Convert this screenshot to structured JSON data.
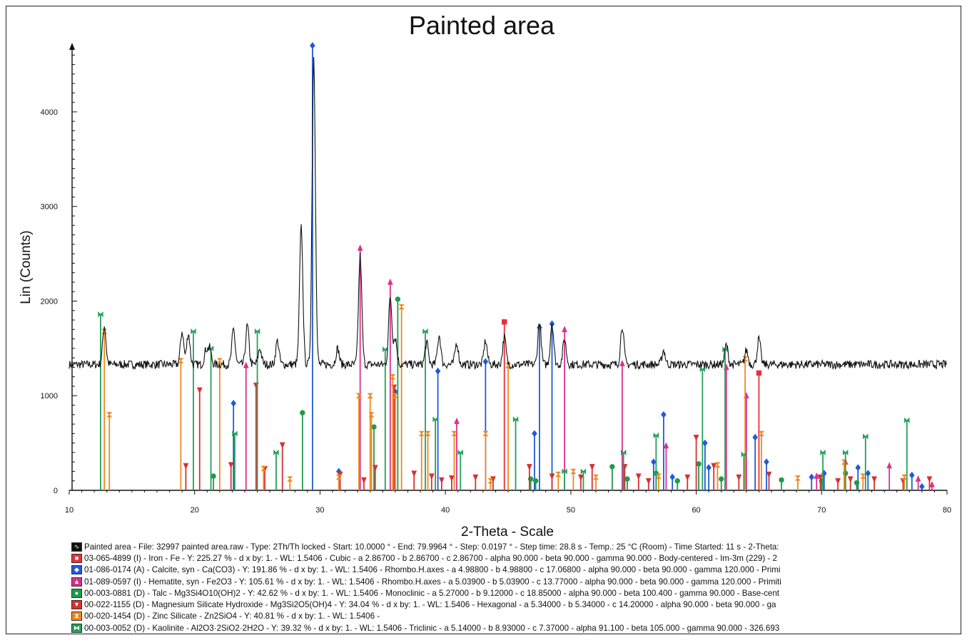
{
  "chart_data": {
    "type": "line",
    "title": "Painted area",
    "xlabel": "2-Theta - Scale",
    "ylabel": "Lin (Counts)",
    "xlim": [
      10,
      80
    ],
    "ylim": [
      0,
      4700
    ],
    "x_ticks": [
      10,
      20,
      30,
      40,
      50,
      60,
      70,
      80
    ],
    "y_ticks": [
      0,
      1000,
      2000,
      3000,
      4000
    ],
    "grid": false,
    "baseline": 1330,
    "series": [
      {
        "name": "Painted area",
        "color": "#111111",
        "peaks": [
          [
            12.8,
            1740
          ],
          [
            19.0,
            1680
          ],
          [
            19.5,
            1660
          ],
          [
            20.9,
            1480
          ],
          [
            21.2,
            1500
          ],
          [
            23.1,
            1700
          ],
          [
            24.2,
            1740
          ],
          [
            25.2,
            1500
          ],
          [
            26.6,
            1580
          ],
          [
            28.5,
            2780
          ],
          [
            29.5,
            4580
          ],
          [
            31.4,
            1500
          ],
          [
            33.2,
            2480
          ],
          [
            35.6,
            2050
          ],
          [
            36.0,
            1610
          ],
          [
            38.5,
            1560
          ],
          [
            39.5,
            1640
          ],
          [
            40.9,
            1560
          ],
          [
            43.2,
            1580
          ],
          [
            44.7,
            1620
          ],
          [
            47.5,
            1780
          ],
          [
            48.5,
            1770
          ],
          [
            49.5,
            1600
          ],
          [
            54.1,
            1740
          ],
          [
            57.4,
            1480
          ],
          [
            62.4,
            1540
          ],
          [
            64.0,
            1480
          ],
          [
            65.0,
            1600
          ]
        ]
      }
    ],
    "reference_phases": [
      {
        "name": "03-065-4899 (I) - Iron - Fe",
        "color": "#e8303c",
        "marker": "square",
        "sticks": [
          [
            44.7,
            1780
          ],
          [
            65.0,
            1240
          ]
        ]
      },
      {
        "name": "01-086-0174 (A) - Calcite, syn - Ca(CO3)",
        "color": "#1e5bd8",
        "marker": "diamond",
        "sticks": [
          [
            23.1,
            920
          ],
          [
            29.4,
            4700
          ],
          [
            31.5,
            200
          ],
          [
            36.0,
            1040
          ],
          [
            39.4,
            1260
          ],
          [
            43.2,
            1360
          ],
          [
            47.1,
            600
          ],
          [
            47.5,
            1720
          ],
          [
            48.5,
            1760
          ],
          [
            56.6,
            300
          ],
          [
            57.4,
            800
          ],
          [
            58.1,
            140
          ],
          [
            60.7,
            500
          ],
          [
            61.0,
            240
          ],
          [
            64.7,
            560
          ],
          [
            65.6,
            300
          ],
          [
            69.2,
            140
          ],
          [
            70.2,
            180
          ],
          [
            72.9,
            240
          ],
          [
            73.7,
            180
          ],
          [
            77.2,
            160
          ],
          [
            78.0,
            40
          ]
        ]
      },
      {
        "name": "01-089-0597 (I) - Hematite, syn - Fe2O3",
        "color": "#d8328c",
        "marker": "triangle-up",
        "sticks": [
          [
            24.1,
            1320
          ],
          [
            33.2,
            2560
          ],
          [
            35.6,
            2200
          ],
          [
            40.9,
            730
          ],
          [
            49.5,
            1700
          ],
          [
            54.1,
            1340
          ],
          [
            57.6,
            470
          ],
          [
            62.4,
            1300
          ],
          [
            64.0,
            1000
          ],
          [
            69.6,
            150
          ],
          [
            71.9,
            300
          ],
          [
            75.4,
            260
          ],
          [
            77.7,
            120
          ],
          [
            78.8,
            60
          ]
        ]
      },
      {
        "name": "00-003-0881 (D) - Talc - Mg3Si4O10(OH)2",
        "color": "#1e9a4a",
        "marker": "circle",
        "sticks": [
          [
            21.5,
            150
          ],
          [
            28.6,
            820
          ],
          [
            34.3,
            670
          ],
          [
            36.2,
            2020
          ],
          [
            46.8,
            120
          ],
          [
            47.2,
            100
          ],
          [
            53.3,
            250
          ],
          [
            54.5,
            120
          ],
          [
            56.8,
            180
          ],
          [
            58.5,
            100
          ],
          [
            60.2,
            280
          ],
          [
            62.0,
            120
          ],
          [
            66.8,
            110
          ],
          [
            70.0,
            100
          ],
          [
            71.9,
            180
          ],
          [
            72.8,
            80
          ]
        ]
      },
      {
        "name": "00-022-1155 (D) - Magnesium Silicate Hydroxide - Mg3Si2O5(OH)4",
        "color": "#d83030",
        "marker": "triangle-down",
        "sticks": [
          [
            19.3,
            260
          ],
          [
            20.4,
            1060
          ],
          [
            22.9,
            270
          ],
          [
            24.9,
            1110
          ],
          [
            25.6,
            230
          ],
          [
            27.0,
            480
          ],
          [
            31.6,
            170
          ],
          [
            33.5,
            110
          ],
          [
            34.4,
            240
          ],
          [
            35.9,
            1090
          ],
          [
            37.5,
            180
          ],
          [
            38.9,
            150
          ],
          [
            39.7,
            110
          ],
          [
            40.5,
            130
          ],
          [
            42.4,
            140
          ],
          [
            43.8,
            120
          ],
          [
            46.7,
            250
          ],
          [
            48.5,
            150
          ],
          [
            50.8,
            140
          ],
          [
            51.7,
            250
          ],
          [
            54.3,
            250
          ],
          [
            55.4,
            150
          ],
          [
            56.2,
            100
          ],
          [
            59.3,
            140
          ],
          [
            60.0,
            560
          ],
          [
            61.4,
            260
          ],
          [
            63.4,
            140
          ],
          [
            65.8,
            170
          ],
          [
            69.9,
            140
          ],
          [
            71.3,
            100
          ],
          [
            72.3,
            120
          ],
          [
            74.2,
            120
          ],
          [
            76.5,
            100
          ],
          [
            78.6,
            120
          ]
        ]
      },
      {
        "name": "00-020-1454 (D) - Zinc Silicate - Zn2SiO4",
        "color": "#f0891c",
        "marker": "hourglass",
        "sticks": [
          [
            12.8,
            1680
          ],
          [
            13.2,
            800
          ],
          [
            18.9,
            1370
          ],
          [
            22.0,
            1370
          ],
          [
            25.5,
            230
          ],
          [
            27.6,
            120
          ],
          [
            31.5,
            140
          ],
          [
            33.1,
            1000
          ],
          [
            34.0,
            1000
          ],
          [
            34.1,
            800
          ],
          [
            35.8,
            1200
          ],
          [
            36.0,
            1000
          ],
          [
            36.5,
            1940
          ],
          [
            38.1,
            600
          ],
          [
            38.6,
            600
          ],
          [
            40.7,
            600
          ],
          [
            43.2,
            600
          ],
          [
            43.6,
            100
          ],
          [
            45.0,
            1320
          ],
          [
            49.0,
            170
          ],
          [
            50.2,
            200
          ],
          [
            52.0,
            140
          ],
          [
            57.0,
            150
          ],
          [
            61.7,
            270
          ],
          [
            63.9,
            1390
          ],
          [
            65.2,
            600
          ],
          [
            68.1,
            130
          ],
          [
            71.8,
            300
          ],
          [
            73.3,
            150
          ],
          [
            76.6,
            140
          ]
        ]
      },
      {
        "name": "00-003-0052 (D) - Kaolinite - Al2O3·2SiO2·2H2O",
        "color": "#22a05a",
        "marker": "bowtie",
        "sticks": [
          [
            12.5,
            1860
          ],
          [
            19.9,
            1680
          ],
          [
            21.3,
            1500
          ],
          [
            23.2,
            600
          ],
          [
            25.0,
            1680
          ],
          [
            26.5,
            400
          ],
          [
            35.2,
            1490
          ],
          [
            38.4,
            1680
          ],
          [
            39.2,
            750
          ],
          [
            41.2,
            400
          ],
          [
            45.6,
            750
          ],
          [
            49.5,
            200
          ],
          [
            51.0,
            200
          ],
          [
            54.2,
            400
          ],
          [
            56.8,
            580
          ],
          [
            60.5,
            1280
          ],
          [
            62.3,
            1490
          ],
          [
            63.8,
            380
          ],
          [
            70.1,
            400
          ],
          [
            71.9,
            400
          ],
          [
            73.5,
            570
          ],
          [
            76.8,
            740
          ]
        ]
      }
    ]
  },
  "legend": [
    {
      "icon": "scan-icon",
      "color": "#111111",
      "symbol": "∿",
      "text": "Painted area - File: 32997 painted area.raw - Type: 2Th/Th locked - Start: 10.0000 ° - End: 79.9964 ° - Step: 0.0197 ° - Step time: 28.8 s - Temp.: 25 °C (Room) - Time Started: 11 s - 2-Theta:"
    },
    {
      "icon": "square-icon",
      "color": "#e8303c",
      "symbol": "■",
      "text": "03-065-4899 (I) - Iron - Fe - Y: 225.27 % - d x by: 1. - WL: 1.5406 - Cubic - a 2.86700 - b 2.86700 - c 2.86700 - alpha 90.000 - beta 90.000 - gamma 90.000 - Body-centered - Im-3m (229) - 2"
    },
    {
      "icon": "diamond-icon",
      "color": "#1e5bd8",
      "symbol": "◆",
      "text": "01-086-0174 (A) - Calcite, syn - Ca(CO3) - Y: 191.86 % - d x by: 1. - WL: 1.5406 - Rhombo.H.axes - a 4.98800 - b 4.98800 - c 17.06800 - alpha 90.000 - beta 90.000 - gamma 120.000 - Primi"
    },
    {
      "icon": "triangle-up-icon",
      "color": "#d8328c",
      "symbol": "▲",
      "text": "01-089-0597 (I) - Hematite, syn - Fe2O3 - Y: 105.61 % - d x by: 1. - WL: 1.5406 - Rhombo.H.axes - a 5.03900 - b 5.03900 - c 13.77000 - alpha 90.000 - beta 90.000 - gamma 120.000 - Primiti"
    },
    {
      "icon": "circle-icon",
      "color": "#1e9a4a",
      "symbol": "●",
      "text": "00-003-0881 (D) - Talc - Mg3Si4O10(OH)2 - Y: 42.62 % - d x by: 1. - WL: 1.5406 - Monoclinic - a 5.27000 - b 9.12000 - c 18.85000 - alpha 90.000 - beta 100.400 - gamma 90.000 - Base-cent"
    },
    {
      "icon": "triangle-down-icon",
      "color": "#d83030",
      "symbol": "▼",
      "text": "00-022-1155 (D) - Magnesium Silicate Hydroxide - Mg3Si2O5(OH)4 - Y: 34.04 % - d x by: 1. - WL: 1.5406 - Hexagonal - a 5.34000 - b 5.34000 - c 14.20000 - alpha 90.000 - beta 90.000 - ga"
    },
    {
      "icon": "hourglass-icon",
      "color": "#f0891c",
      "symbol": "⧗",
      "text": "00-020-1454 (D) - Zinc Silicate - Zn2SiO4 - Y: 40.81 % - d x by: 1. - WL: 1.5406 -"
    },
    {
      "icon": "bowtie-icon",
      "color": "#22a05a",
      "symbol": "⧓",
      "text": "00-003-0052 (D) - Kaolinite - Al2O3·2SiO2·2H2O - Y: 39.32 % - d x by: 1. - WL: 1.5406 - Triclinic - a 5.14000 - b 8.93000 - c 7.37000 - alpha 91.100 - beta 105.000 - gamma 90.000 - 326.693"
    }
  ]
}
